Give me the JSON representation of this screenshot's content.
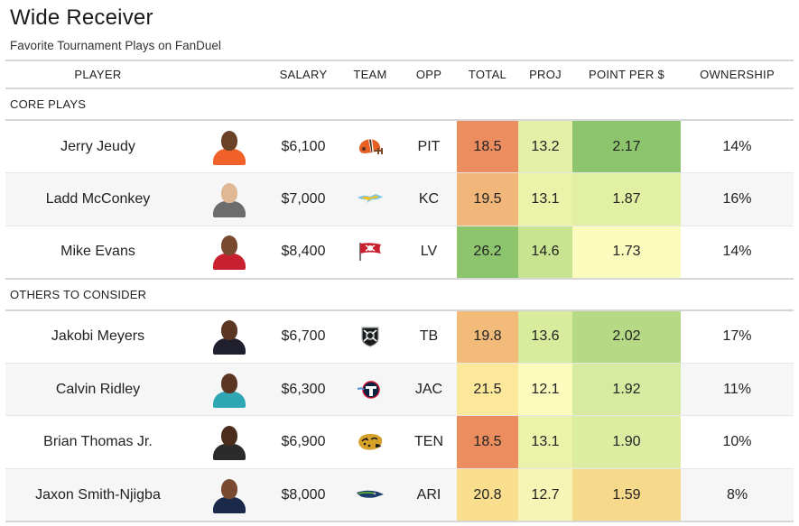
{
  "header": {
    "title": "Wide Receiver",
    "subtitle": "Favorite Tournament Plays on FanDuel"
  },
  "columns": {
    "player": "PLAYER",
    "salary": "SALARY",
    "team": "TEAM",
    "opp": "OPP",
    "total": "TOTAL",
    "proj": "PROJ",
    "pps": "POINT PER $",
    "ownership": "OWNERSHIP"
  },
  "sections": [
    {
      "label": "CORE PLAYS",
      "players": [
        {
          "name": "Jerry Jeudy",
          "salary": "$6,100",
          "team_logo": "browns-helmet-icon",
          "opp": "PIT",
          "total": "18.5",
          "proj": "13.2",
          "pps": "2.17",
          "ownership": "14%",
          "skin": "#6b4128",
          "jersey": "#f0622a",
          "total_color": "#ec8d5f",
          "proj_color": "#e4f0a7",
          "pps_color": "#8cc56d"
        },
        {
          "name": "Ladd McConkey",
          "salary": "$7,000",
          "team_logo": "chargers-bolt-icon",
          "opp": "KC",
          "total": "19.5",
          "proj": "13.1",
          "pps": "1.87",
          "ownership": "16%",
          "skin": "#e0b896",
          "jersey": "#6c6c6c",
          "total_color": "#f1b679",
          "proj_color": "#eaf3a9",
          "pps_color": "#e2f0a4"
        },
        {
          "name": "Mike Evans",
          "salary": "$8,400",
          "team_logo": "buccaneers-flag-icon",
          "opp": "LV",
          "total": "26.2",
          "proj": "14.6",
          "pps": "1.73",
          "ownership": "14%",
          "skin": "#7a4a30",
          "jersey": "#c8202f",
          "total_color": "#8cc56d",
          "proj_color": "#c9e491",
          "pps_color": "#fbfbbe"
        }
      ]
    },
    {
      "label": "OTHERS TO CONSIDER",
      "players": [
        {
          "name": "Jakobi Meyers",
          "salary": "$6,700",
          "team_logo": "raiders-shield-icon",
          "opp": "TB",
          "total": "19.8",
          "proj": "13.6",
          "pps": "2.02",
          "ownership": "17%",
          "skin": "#5a3623",
          "jersey": "#1f1f2e",
          "total_color": "#f2bb7a",
          "proj_color": "#d9eb9d",
          "pps_color": "#b5d985"
        },
        {
          "name": "Calvin Ridley",
          "salary": "$6,300",
          "team_logo": "titans-t-icon",
          "opp": "JAC",
          "total": "21.5",
          "proj": "12.1",
          "pps": "1.92",
          "ownership": "11%",
          "skin": "#5a3623",
          "jersey": "#2ea6b4",
          "total_color": "#fbe89a",
          "proj_color": "#fbfbbe",
          "pps_color": "#d6eaa0"
        },
        {
          "name": "Brian Thomas Jr.",
          "salary": "$6,900",
          "team_logo": "jaguars-head-icon",
          "opp": "TEN",
          "total": "18.5",
          "proj": "13.1",
          "pps": "1.90",
          "ownership": "10%",
          "skin": "#4a2d1c",
          "jersey": "#2b2b2b",
          "total_color": "#ec8d5f",
          "proj_color": "#eaf3a9",
          "pps_color": "#dcedA2"
        },
        {
          "name": "Jaxon Smith-Njigba",
          "salary": "$8,000",
          "team_logo": "seahawks-head-icon",
          "opp": "ARI",
          "total": "20.8",
          "proj": "12.7",
          "pps": "1.59",
          "ownership": "8%",
          "skin": "#7a4a30",
          "jersey": "#1b2a4a",
          "total_color": "#f9de8e",
          "proj_color": "#f6f5b6",
          "pps_color": "#f7d98b"
        }
      ]
    }
  ]
}
